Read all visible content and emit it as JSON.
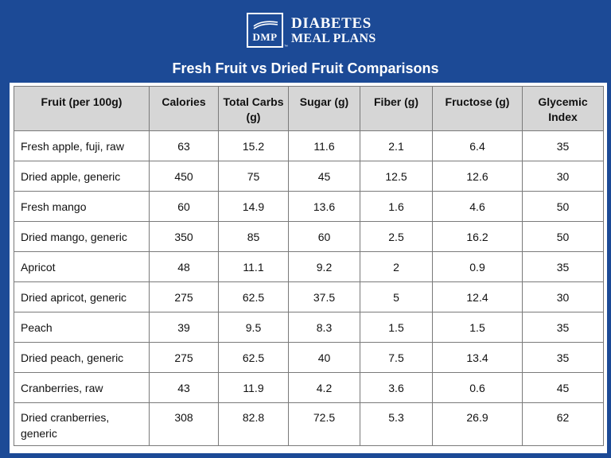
{
  "logo": {
    "abbr": "DMP",
    "tm": "™",
    "name_line1": "DIABETES",
    "name_line2": "MEAL PLANS"
  },
  "title": "Fresh Fruit vs Dried Fruit Comparisons",
  "table": {
    "headers": [
      "Fruit (per 100g)",
      "Calories",
      "Total Carbs (g)",
      "Sugar (g)",
      "Fiber (g)",
      "Fructose (g)",
      "Glycemic Index"
    ],
    "rows": [
      [
        "Fresh apple, fuji, raw",
        "63",
        "15.2",
        "11.6",
        "2.1",
        "6.4",
        "35"
      ],
      [
        "Dried apple, generic",
        "450",
        "75",
        "45",
        "12.5",
        "12.6",
        "30"
      ],
      [
        "Fresh mango",
        "60",
        "14.9",
        "13.6",
        "1.6",
        "4.6",
        "50"
      ],
      [
        "Dried mango, generic",
        "350",
        "85",
        "60",
        "2.5",
        "16.2",
        "50"
      ],
      [
        "Apricot",
        "48",
        "11.1",
        "9.2",
        "2",
        "0.9",
        "35"
      ],
      [
        "Dried apricot, generic",
        "275",
        "62.5",
        "37.5",
        "5",
        "12.4",
        "30"
      ],
      [
        "Peach",
        "39",
        "9.5",
        "8.3",
        "1.5",
        "1.5",
        "35"
      ],
      [
        "Dried peach, generic",
        "275",
        "62.5",
        "40",
        "7.5",
        "13.4",
        "35"
      ],
      [
        "Cranberries, raw",
        "43",
        "11.9",
        "4.2",
        "3.6",
        "0.6",
        "45"
      ],
      [
        "Dried cranberries, generic",
        "308",
        "82.8",
        "72.5",
        "5.3",
        "26.9",
        "62"
      ]
    ]
  }
}
